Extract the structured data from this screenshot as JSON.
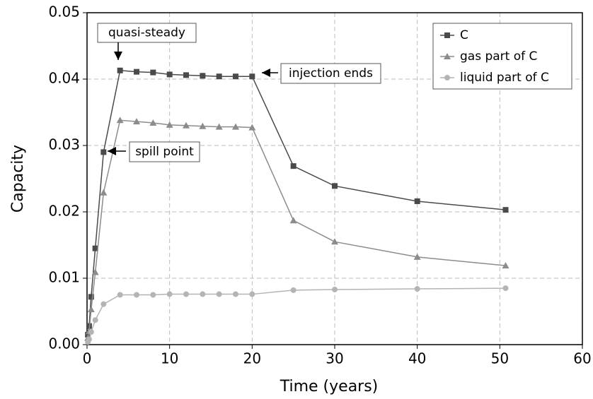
{
  "chart_data": {
    "type": "line",
    "x_label": "Time (years)",
    "y_label": "Capacity",
    "x": [
      0.1,
      0.25,
      0.5,
      1,
      2,
      4,
      6,
      8,
      10,
      12,
      14,
      16,
      18,
      20,
      25,
      30,
      40,
      50.7
    ],
    "series": [
      {
        "name": "C",
        "color": "#4a4a4a",
        "marker": "square",
        "values": [
          0.0015,
          0.0028,
          0.0072,
          0.0145,
          0.029,
          0.0413,
          0.0411,
          0.041,
          0.0407,
          0.0406,
          0.0405,
          0.0404,
          0.0404,
          0.0404,
          0.0269,
          0.0239,
          0.0216,
          0.0203
        ]
      },
      {
        "name": "gas part of C",
        "color": "#8c8c8c",
        "marker": "triangle",
        "values": [
          0.001,
          0.002,
          0.0053,
          0.0109,
          0.0229,
          0.0338,
          0.0336,
          0.0334,
          0.0331,
          0.033,
          0.0329,
          0.0328,
          0.0328,
          0.0327,
          0.0187,
          0.0155,
          0.0132,
          0.0119
        ]
      },
      {
        "name": "liquid part of C",
        "color": "#b4b4b4",
        "marker": "circle",
        "values": [
          0.0004,
          0.0008,
          0.0019,
          0.0037,
          0.0061,
          0.0075,
          0.0075,
          0.0075,
          0.0076,
          0.0076,
          0.0076,
          0.0076,
          0.0076,
          0.0076,
          0.0082,
          0.0083,
          0.0084,
          0.0085
        ]
      }
    ],
    "xlim": [
      0,
      60
    ],
    "xticks": [
      0,
      10,
      20,
      30,
      40,
      50,
      60
    ],
    "ylim": [
      0,
      0.05
    ],
    "yticks": [
      {
        "value": 0,
        "label": "0.00"
      },
      0.01,
      0.02,
      0.03,
      0.04,
      0.05
    ],
    "grid": true,
    "legend": "upper right",
    "annotations": [
      {
        "text": "quasi-steady"
      },
      {
        "text": "injection ends"
      },
      {
        "text": "spill point"
      }
    ]
  }
}
